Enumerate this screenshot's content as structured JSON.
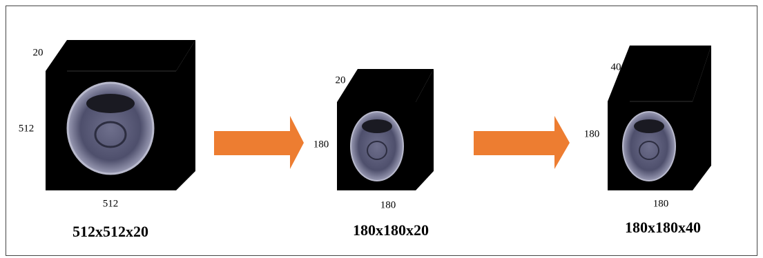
{
  "cubes": [
    {
      "depth_label": "20",
      "height_label": "512",
      "width_label": "512",
      "caption": "512x512x20"
    },
    {
      "depth_label": "20",
      "height_label": "180",
      "width_label": "180",
      "caption": "180x180x20"
    },
    {
      "depth_label": "40",
      "height_label": "180",
      "width_label": "180",
      "caption": "180x180x40"
    }
  ]
}
